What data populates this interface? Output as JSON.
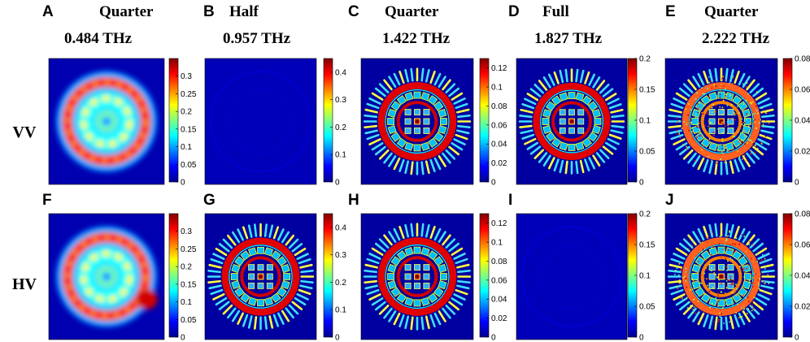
{
  "colors": {
    "background": "#0000a8",
    "colormap": [
      "#00008f",
      "#0000ff",
      "#0080ff",
      "#00ffff",
      "#80ff80",
      "#ffff00",
      "#ff8000",
      "#ff0000",
      "#800000"
    ]
  },
  "rows": [
    {
      "label": "VV"
    },
    {
      "label": "HV"
    }
  ],
  "columns": [
    {
      "title": "Quarter",
      "freq": "0.484 THz"
    },
    {
      "title": "Half",
      "freq": "0.957 THz"
    },
    {
      "title": "Quarter",
      "freq": "1.422 THz"
    },
    {
      "title": "Full",
      "freq": "1.827 THz"
    },
    {
      "title": "Quarter",
      "freq": "2.222 THz"
    }
  ],
  "panels": [
    {
      "letter": "A",
      "pattern": "blob",
      "ticks": [
        "0.3",
        "0.25",
        "0.2",
        "0.15",
        "0.1",
        "0.05",
        "0"
      ],
      "tick_values": [
        0.3,
        0.25,
        0.2,
        0.15,
        0.1,
        0.05,
        0
      ],
      "cmax": 0.35
    },
    {
      "letter": "B",
      "pattern": "dark",
      "ticks": [
        "0.4",
        "0.3",
        "0.2",
        "0.1",
        "0"
      ],
      "tick_values": [
        0.4,
        0.3,
        0.2,
        0.1,
        0
      ],
      "cmax": 0.45
    },
    {
      "letter": "C",
      "pattern": "meta",
      "ticks": [
        "0.12",
        "0.1",
        "0.08",
        "0.06",
        "0.04",
        "0.02",
        "0"
      ],
      "tick_values": [
        0.12,
        0.1,
        0.08,
        0.06,
        0.04,
        0.02,
        0
      ],
      "cmax": 0.13
    },
    {
      "letter": "D",
      "pattern": "meta",
      "ticks": [
        "0.2",
        "0.15",
        "0.1",
        "0.05",
        "0"
      ],
      "tick_values": [
        0.2,
        0.15,
        0.1,
        0.05,
        0
      ],
      "cmax": 0.2
    },
    {
      "letter": "E",
      "pattern": "noisy",
      "ticks": [
        "0.08",
        "0.06",
        "0.04",
        "0.02",
        "0"
      ],
      "tick_values": [
        0.08,
        0.06,
        0.04,
        0.02,
        0
      ],
      "cmax": 0.08
    },
    {
      "letter": "F",
      "pattern": "blob2",
      "ticks": [
        "0.3",
        "0.25",
        "0.2",
        "0.15",
        "0.1",
        "0.05",
        "0"
      ],
      "tick_values": [
        0.3,
        0.25,
        0.2,
        0.15,
        0.1,
        0.05,
        0
      ],
      "cmax": 0.35
    },
    {
      "letter": "G",
      "pattern": "meta",
      "ticks": [
        "0.4",
        "0.3",
        "0.2",
        "0.1",
        "0"
      ],
      "tick_values": [
        0.4,
        0.3,
        0.2,
        0.1,
        0
      ],
      "cmax": 0.45
    },
    {
      "letter": "H",
      "pattern": "meta",
      "ticks": [
        "0.12",
        "0.1",
        "0.08",
        "0.06",
        "0.04",
        "0.02",
        "0"
      ],
      "tick_values": [
        0.12,
        0.1,
        0.08,
        0.06,
        0.04,
        0.02,
        0
      ],
      "cmax": 0.13
    },
    {
      "letter": "I",
      "pattern": "dark",
      "ticks": [
        "0.2",
        "0.15",
        "0.1",
        "0.05",
        "0"
      ],
      "tick_values": [
        0.2,
        0.15,
        0.1,
        0.05,
        0
      ],
      "cmax": 0.2
    },
    {
      "letter": "J",
      "pattern": "noisy",
      "ticks": [
        "0.08",
        "0.06",
        "0.04",
        "0.02",
        "0"
      ],
      "tick_values": [
        0.08,
        0.06,
        0.04,
        0.02,
        0
      ],
      "cmax": 0.08
    }
  ]
}
